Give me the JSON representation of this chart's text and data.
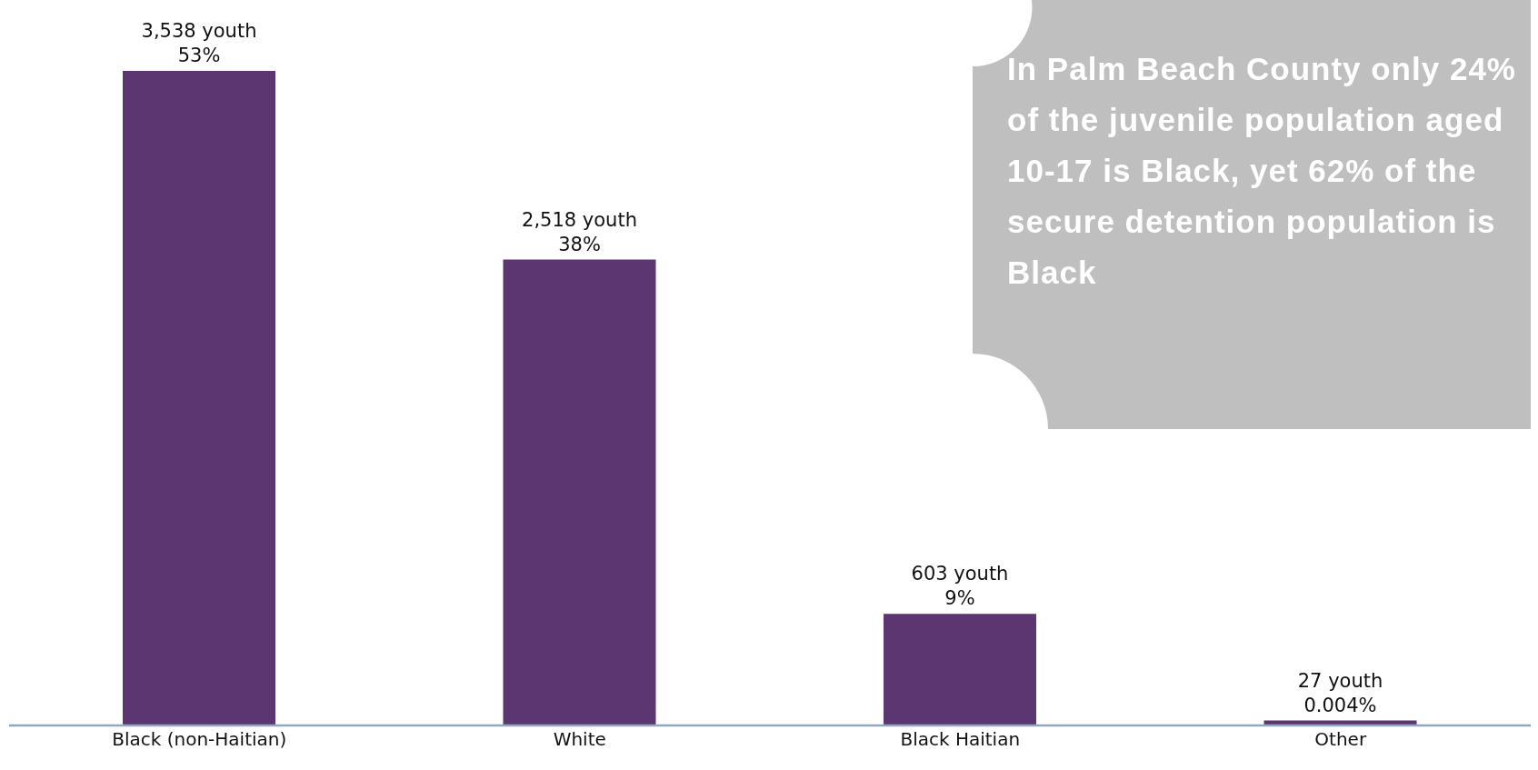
{
  "chart_data": {
    "type": "bar",
    "categories": [
      "Black (non-Haitian)",
      "White",
      "Black Haitian",
      "Other"
    ],
    "values": [
      3538,
      2518,
      603,
      27
    ],
    "color": "#5c3670",
    "value_labels": [
      "3,538 youth\n53%",
      "2,518 youth\n38%",
      "603 youth\n9%",
      "27 youth\n0.004%"
    ],
    "annotations": [
      "In Palm Beach County only 24% of the juvenile population aged 10-17 is Black, yet 62% of the secure detention population is Black"
    ],
    "grid": false,
    "legend": false
  }
}
